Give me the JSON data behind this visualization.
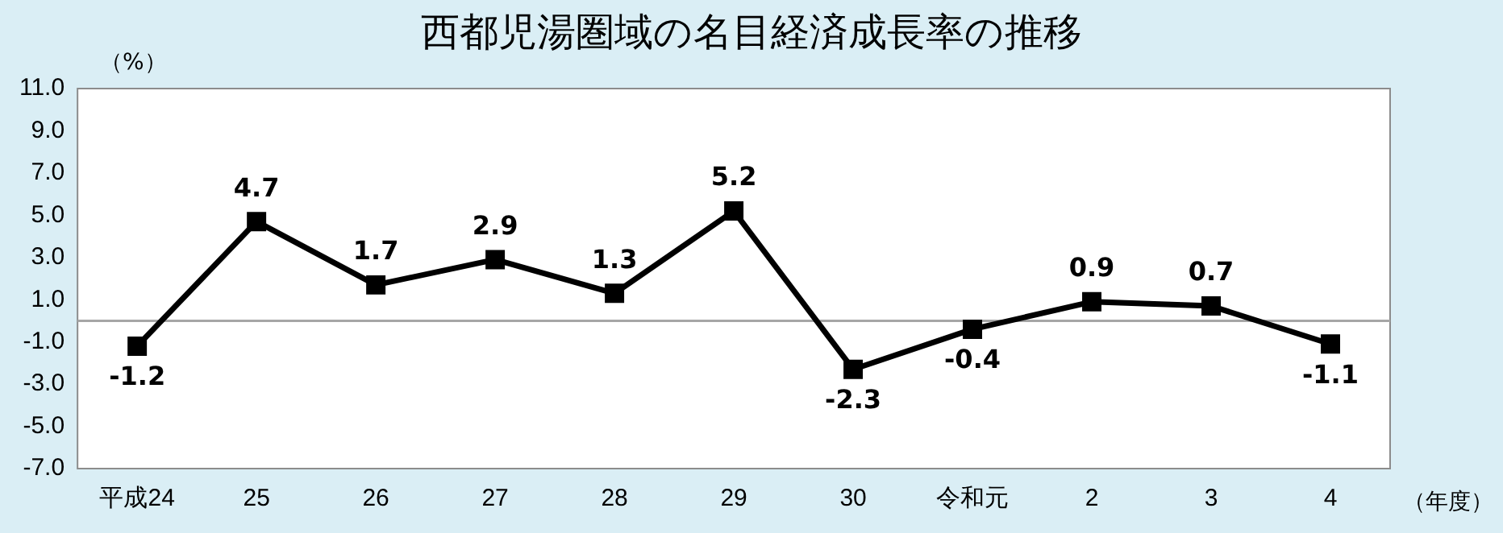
{
  "chart_data": {
    "type": "line",
    "title": "西都児湯圏域の名目経済成長率の推移",
    "ylabel": "（%）",
    "xlabel": "（年度）",
    "categories": [
      "平成24",
      "25",
      "26",
      "27",
      "28",
      "29",
      "30",
      "令和元",
      "2",
      "3",
      "4"
    ],
    "series": [
      {
        "color": "#000000",
        "values": [
          -1.2,
          4.7,
          1.7,
          2.9,
          1.3,
          5.2,
          -2.3,
          -0.4,
          0.9,
          0.7,
          -1.1
        ]
      }
    ],
    "ylim": [
      -7,
      11
    ],
    "yticks": [
      {
        "value": -7,
        "label": "-7.0"
      },
      {
        "value": -5,
        "label": "-5.0"
      },
      {
        "value": -3,
        "label": "-3.0"
      },
      {
        "value": -1,
        "label": "-1.0"
      },
      {
        "value": 1,
        "label": "1.0"
      },
      {
        "value": 3,
        "label": "3.0"
      },
      {
        "value": 5,
        "label": "5.0"
      },
      {
        "value": 7,
        "label": "7.0"
      },
      {
        "value": 9,
        "label": "9.0"
      },
      {
        "value": 11,
        "label": "11.0"
      }
    ],
    "ref_lines": [
      {
        "axis": "y",
        "value": 0,
        "color": "#a6a6a6"
      }
    ],
    "grid": false,
    "legend": false,
    "marker": "square",
    "line_style": "solid",
    "data_labels": true
  }
}
